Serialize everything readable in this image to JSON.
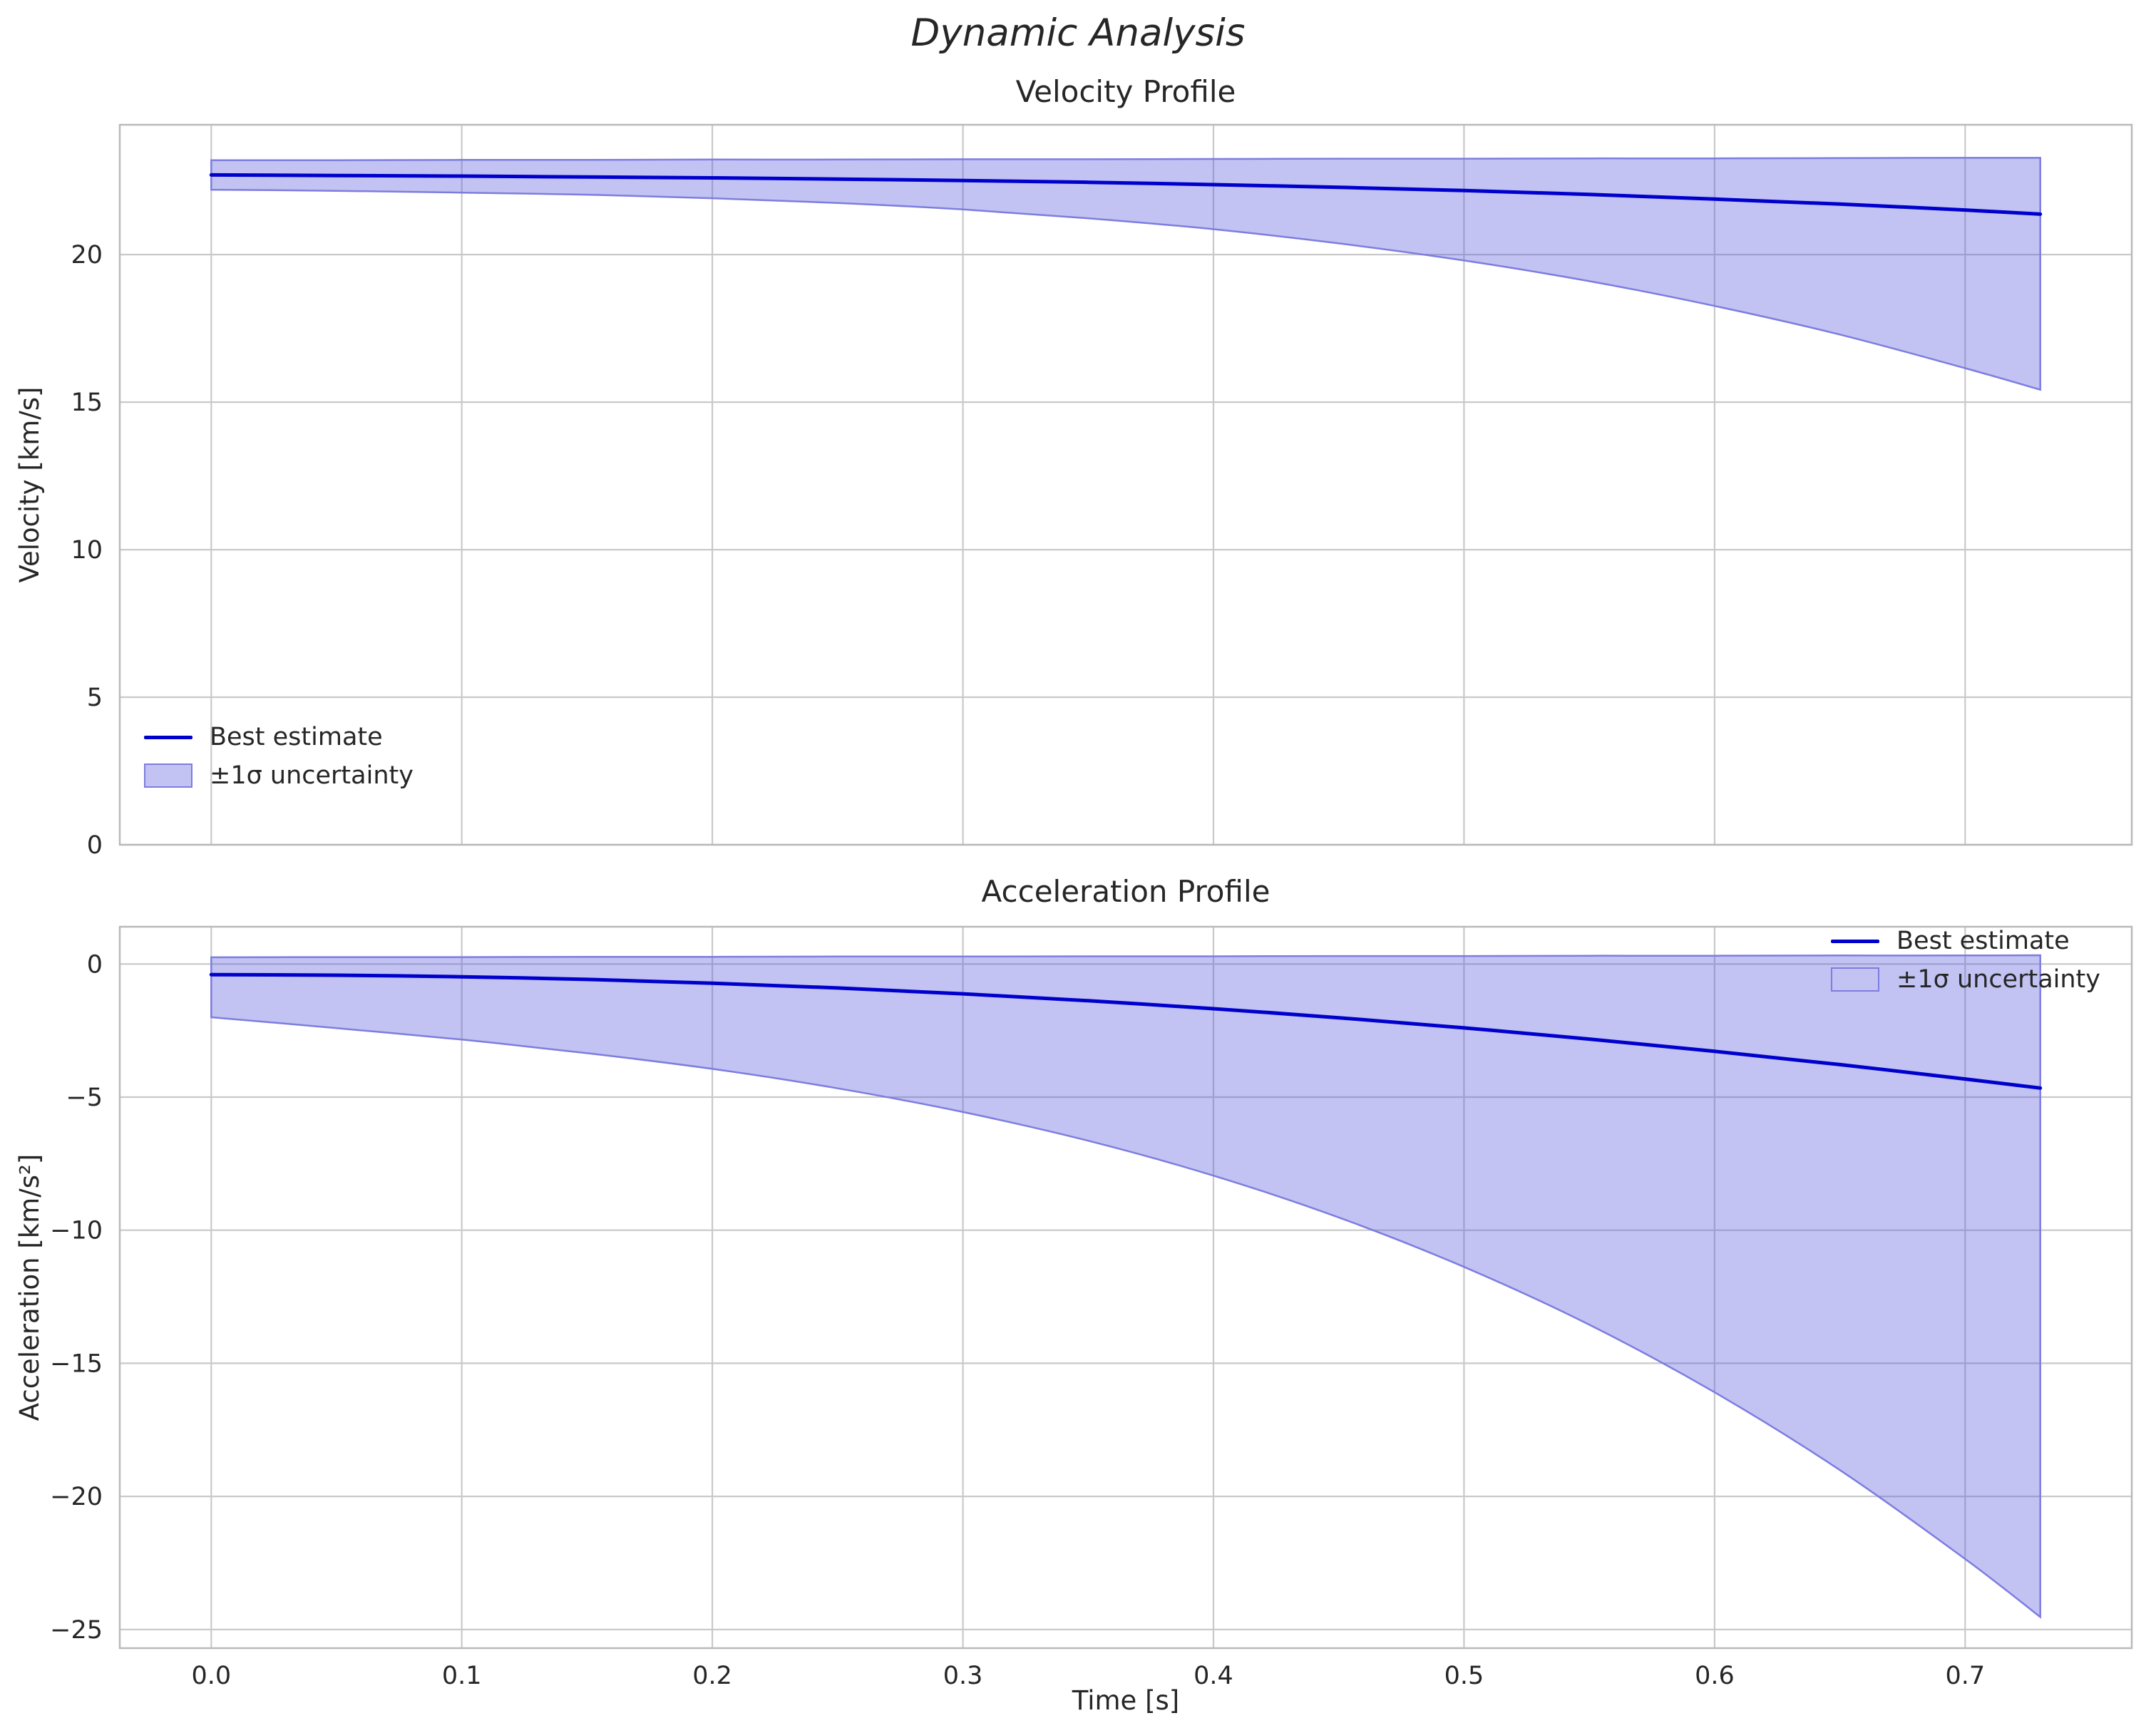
{
  "figure": {
    "title": "Dynamic Analysis"
  },
  "colors": {
    "line": "#0000cd",
    "band_fill": "#5050dc",
    "band_fill_opacity": 0.35,
    "band_edge": "#7d7de0",
    "band_swatch": "#c2c2f3",
    "grid": "#c9c9c9",
    "spine": "#b9b9b9",
    "text": "#262626"
  },
  "chart_data": [
    {
      "type": "line",
      "title": "Velocity Profile",
      "xlabel": "",
      "ylabel": "Velocity [km/s]",
      "xlim": [
        -0.0365,
        0.7665
      ],
      "ylim": [
        0,
        24.4
      ],
      "grid": true,
      "legend_position": "lower left",
      "x": [
        0,
        0.05,
        0.1,
        0.15,
        0.2,
        0.25,
        0.3,
        0.35,
        0.4,
        0.45,
        0.5,
        0.55,
        0.6,
        0.65,
        0.7,
        0.73
      ],
      "series": [
        {
          "name": "Best estimate",
          "values": [
            22.7,
            22.68,
            22.66,
            22.63,
            22.6,
            22.56,
            22.51,
            22.45,
            22.37,
            22.28,
            22.17,
            22.04,
            21.88,
            21.71,
            21.51,
            21.37
          ]
        }
      ],
      "band": {
        "name": "±1σ uncertainty",
        "upper": [
          23.2,
          23.2,
          23.21,
          23.21,
          23.22,
          23.22,
          23.23,
          23.23,
          23.24,
          23.25,
          23.25,
          23.26,
          23.26,
          23.27,
          23.28,
          23.28
        ],
        "lower": [
          22.2,
          22.16,
          22.1,
          22.03,
          21.91,
          21.75,
          21.53,
          21.23,
          20.86,
          20.38,
          19.8,
          19.1,
          18.26,
          17.29,
          16.15,
          15.42
        ]
      },
      "yticks": [
        [
          0,
          "0"
        ],
        [
          5,
          "5"
        ],
        [
          10,
          "10"
        ],
        [
          15,
          "15"
        ],
        [
          20,
          "20"
        ]
      ],
      "xticks": [
        [
          0,
          "0.0"
        ],
        [
          0.1,
          "0.1"
        ],
        [
          0.2,
          "0.2"
        ],
        [
          0.3,
          "0.3"
        ],
        [
          0.4,
          "0.4"
        ],
        [
          0.5,
          "0.5"
        ],
        [
          0.6,
          "0.6"
        ],
        [
          0.7,
          "0.7"
        ]
      ],
      "show_xtick_labels": false
    },
    {
      "type": "line",
      "title": "Acceleration Profile",
      "xlabel": "Time [s]",
      "ylabel": "Acceleration [km/s²]",
      "xlim": [
        -0.0365,
        0.7665
      ],
      "ylim": [
        -25.7,
        1.4
      ],
      "grid": true,
      "legend_position": "upper right",
      "x": [
        0,
        0.05,
        0.1,
        0.15,
        0.2,
        0.25,
        0.3,
        0.35,
        0.4,
        0.45,
        0.5,
        0.55,
        0.6,
        0.65,
        0.7,
        0.73
      ],
      "series": [
        {
          "name": "Best estimate",
          "values": [
            -0.4,
            -0.42,
            -0.48,
            -0.58,
            -0.72,
            -0.9,
            -1.12,
            -1.38,
            -1.68,
            -2.02,
            -2.4,
            -2.82,
            -3.28,
            -3.78,
            -4.32,
            -4.66
          ]
        }
      ],
      "band": {
        "name": "±1σ uncertainty",
        "upper": [
          0.25,
          0.26,
          0.26,
          0.27,
          0.27,
          0.28,
          0.28,
          0.29,
          0.29,
          0.3,
          0.3,
          0.31,
          0.31,
          0.32,
          0.32,
          0.33
        ],
        "lower": [
          -2.0,
          -2.41,
          -2.84,
          -3.35,
          -3.94,
          -4.67,
          -5.56,
          -6.64,
          -7.95,
          -9.52,
          -11.38,
          -13.55,
          -16.09,
          -19.01,
          -22.35,
          -24.53
        ]
      },
      "yticks": [
        [
          0,
          "0"
        ],
        [
          -5,
          "−5"
        ],
        [
          -10,
          "−10"
        ],
        [
          -15,
          "−15"
        ],
        [
          -20,
          "−20"
        ],
        [
          -25,
          "−25"
        ]
      ],
      "xticks": [
        [
          0,
          "0.0"
        ],
        [
          0.1,
          "0.1"
        ],
        [
          0.2,
          "0.2"
        ],
        [
          0.3,
          "0.3"
        ],
        [
          0.4,
          "0.4"
        ],
        [
          0.5,
          "0.5"
        ],
        [
          0.6,
          "0.6"
        ],
        [
          0.7,
          "0.7"
        ]
      ],
      "show_xtick_labels": true
    }
  ]
}
